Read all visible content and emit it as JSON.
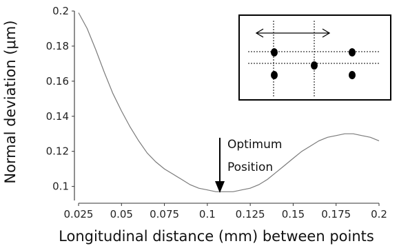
{
  "chart_data": {
    "type": "line",
    "title": "",
    "xlabel": "Longitudinal distance (mm) between points",
    "ylabel": "Normal deviation (μm)",
    "xlim": [
      0.025,
      0.2
    ],
    "ylim": [
      0.092,
      0.2
    ],
    "x_ticks": [
      "0.025",
      "0.05",
      "0.075",
      "0.1",
      "0.125",
      "0.15",
      "0.175",
      "0.2"
    ],
    "y_ticks": [
      "0.1",
      "0.12",
      "0.14",
      "0.16",
      "0.18",
      "0.2"
    ],
    "grid": false,
    "series": [
      {
        "x": [
          0.025,
          0.03,
          0.035,
          0.04,
          0.045,
          0.05,
          0.055,
          0.06,
          0.065,
          0.07,
          0.075,
          0.08,
          0.085,
          0.09,
          0.095,
          0.1,
          0.105,
          0.11,
          0.115,
          0.12,
          0.125,
          0.13,
          0.135,
          0.14,
          0.145,
          0.15,
          0.155,
          0.16,
          0.165,
          0.17,
          0.175,
          0.18,
          0.185,
          0.19,
          0.195,
          0.2
        ],
        "y": [
          0.199,
          0.19,
          0.178,
          0.165,
          0.153,
          0.143,
          0.134,
          0.126,
          0.119,
          0.114,
          0.11,
          0.107,
          0.104,
          0.101,
          0.099,
          0.098,
          0.097,
          0.097,
          0.097,
          0.098,
          0.099,
          0.101,
          0.104,
          0.108,
          0.112,
          0.116,
          0.12,
          0.123,
          0.126,
          0.128,
          0.129,
          0.13,
          0.13,
          0.129,
          0.128,
          0.126
        ]
      }
    ],
    "annotations": [
      {
        "text_line1": "Optimum",
        "text_line2": "Position",
        "arrow_to": [
          0.108,
          0.097
        ]
      }
    ]
  }
}
